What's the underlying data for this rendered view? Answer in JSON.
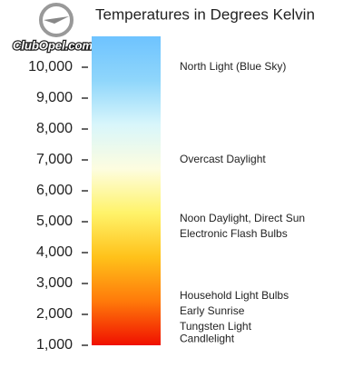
{
  "chart_data": {
    "type": "color-scale",
    "title": "Temperatures in Degrees Kelvin",
    "watermark": "ClubOpel.com",
    "ylim": [
      1000,
      11000
    ],
    "yticks": [
      {
        "value": 1000,
        "label": "1,000"
      },
      {
        "value": 2000,
        "label": "2,000"
      },
      {
        "value": 3000,
        "label": "3,000"
      },
      {
        "value": 4000,
        "label": "4,000"
      },
      {
        "value": 5000,
        "label": "5,000"
      },
      {
        "value": 6000,
        "label": "6,000"
      },
      {
        "value": 7000,
        "label": "7,000"
      },
      {
        "value": 8000,
        "label": "8,000"
      },
      {
        "value": 9000,
        "label": "9,000"
      },
      {
        "value": 10000,
        "label": "10,000"
      }
    ],
    "gradient": [
      "#f01000",
      "#ff7a0a",
      "#ffc21a",
      "#fff36a",
      "#fdfde0",
      "#d8f6fb",
      "#8fd6fb",
      "#6ec3ff"
    ],
    "annotations": [
      {
        "text": "North Light (Blue Sky)",
        "value": 10000
      },
      {
        "text": "Overcast Daylight",
        "value": 7000
      },
      {
        "text": "Noon Daylight, Direct Sun",
        "value": 5100
      },
      {
        "text": "Electronic Flash Bulbs",
        "value": 4600
      },
      {
        "text": "Household Light Bulbs",
        "value": 2600
      },
      {
        "text": "Early Sunrise",
        "value": 2100
      },
      {
        "text": "Tungsten Light",
        "value": 1600
      },
      {
        "text": "Candlelight",
        "value": 1200
      }
    ]
  }
}
